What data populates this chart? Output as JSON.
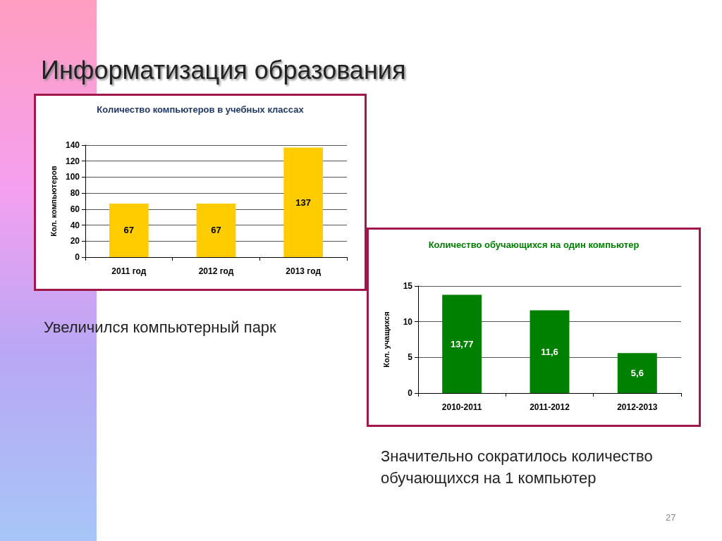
{
  "chart_data": [
    {
      "type": "bar",
      "title": "Количество компьютеров в учебных классах",
      "ylabel": "Кол. компьютеров",
      "categories": [
        "2011 год",
        "2012 год",
        "2013 год"
      ],
      "values": [
        67,
        67,
        137
      ],
      "color": "#ffcc00",
      "ylim": [
        0,
        140
      ],
      "yticks": [
        0,
        20,
        40,
        60,
        80,
        100,
        120,
        140
      ],
      "grid": "y",
      "data_labels": true,
      "annotations": [
        "Информатизация образования",
        "Увеличился компьютерный парк"
      ]
    },
    {
      "type": "bar",
      "title": "Количество обучающихся на один компьютер",
      "ylabel": "Кол. учащихся",
      "categories": [
        "2010-2011",
        "2011-2012",
        "2012-2013"
      ],
      "values": [
        13.77,
        11.6,
        5.6
      ],
      "value_labels": [
        "13,77",
        "11,6",
        "5,6"
      ],
      "color": "#008000",
      "ylim": [
        0,
        15
      ],
      "yticks": [
        0,
        5,
        10,
        15
      ],
      "grid": "y",
      "annotations": [
        "Значительно сократилось количество обучающихся на 1 компьютер",
        "27"
      ]
    }
  ]
}
